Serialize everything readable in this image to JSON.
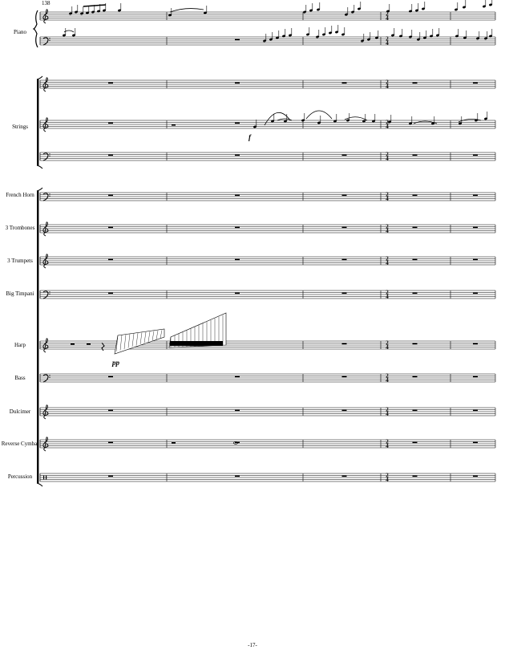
{
  "measure_number": "138",
  "instruments": [
    "Piano",
    "Strings",
    "French Horn",
    "3 Trombones",
    "3 Trumpets",
    "Big Timpani",
    "Harp",
    "Bass",
    "Dulcimer",
    "Reverse Cymbal",
    "Percussion"
  ],
  "time_signature": {
    "numerator": "2",
    "denominator": "4"
  },
  "dynamics": {
    "harp": "pp",
    "strings": "f"
  },
  "page_number": "-17-"
}
